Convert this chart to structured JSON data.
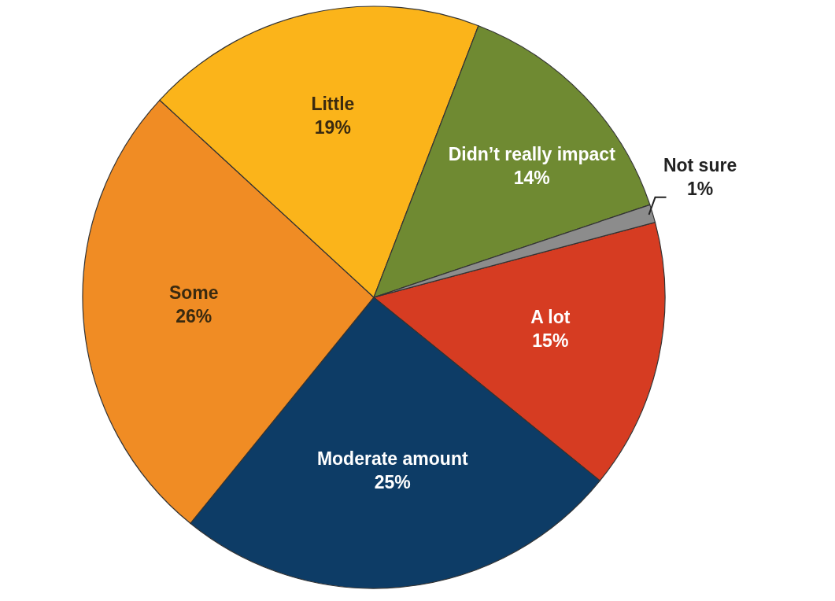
{
  "chart_data": {
    "type": "pie",
    "categories": [
      "A lot",
      "Moderate amount",
      "Some",
      "Little",
      "Didn’t really impact",
      "Not sure"
    ],
    "values": [
      15,
      25,
      26,
      19,
      14,
      1
    ],
    "value_labels": [
      "15%",
      "25%",
      "26%",
      "19%",
      "14%",
      "1%"
    ],
    "colors": [
      "#d63c22",
      "#0d3c66",
      "#f08c24",
      "#fbb41a",
      "#6f8a32",
      "#8c8c8c"
    ]
  }
}
